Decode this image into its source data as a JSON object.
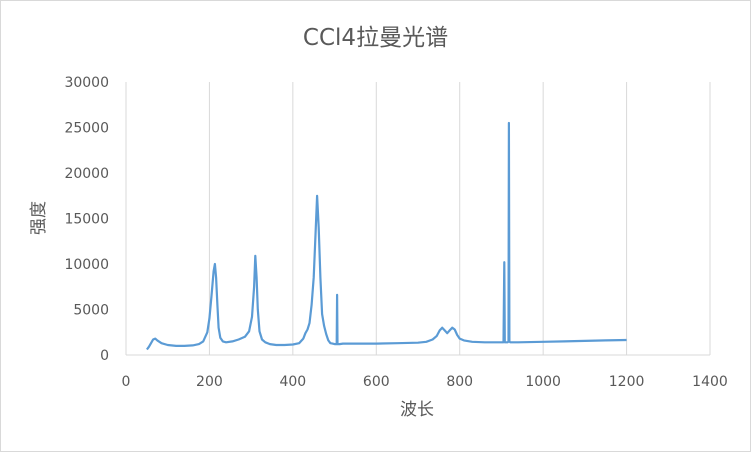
{
  "chart_data": {
    "type": "line",
    "title": "CCl4拉曼光谱",
    "xlabel": "波长",
    "ylabel": "强度",
    "xlim": [
      0,
      1400
    ],
    "ylim": [
      0,
      30000
    ],
    "x_ticks": [
      "0",
      "200",
      "400",
      "600",
      "800",
      "1000",
      "1200",
      "1400"
    ],
    "y_ticks": [
      "0",
      "5000",
      "10000",
      "15000",
      "20000",
      "25000",
      "30000"
    ],
    "grid": "vertical",
    "legend": "none",
    "colors": {
      "series": "#5b9bd5",
      "grid": "#d9d9d9",
      "text": "#595959"
    },
    "series": [
      {
        "x": [
          50,
          55,
          60,
          65,
          70,
          75,
          85,
          100,
          120,
          140,
          160,
          175,
          185,
          195,
          200,
          205,
          210,
          213,
          216,
          219,
          222,
          226,
          232,
          240,
          255,
          270,
          285,
          295,
          302,
          307,
          310,
          313,
          316,
          320,
          326,
          334,
          345,
          360,
          380,
          400,
          415,
          425,
          430,
          435,
          440,
          445,
          450,
          455,
          458,
          462,
          466,
          470,
          475,
          480,
          485,
          490,
          495,
          500,
          505,
          506,
          507,
          508,
          509,
          512,
          520,
          550,
          600,
          650,
          700,
          720,
          735,
          745,
          752,
          758,
          764,
          770,
          776,
          782,
          788,
          794,
          800,
          810,
          830,
          860,
          890,
          905,
          907,
          908,
          909,
          911,
          913,
          915,
          917,
          918,
          919,
          921,
          925,
          940,
          1000,
          1050,
          1100,
          1150,
          1200
        ],
        "y": [
          600,
          900,
          1300,
          1700,
          1800,
          1600,
          1300,
          1100,
          1000,
          1000,
          1050,
          1200,
          1500,
          2500,
          4000,
          6500,
          9200,
          10000,
          8500,
          5500,
          3000,
          1900,
          1500,
          1400,
          1500,
          1700,
          2000,
          2600,
          4200,
          7500,
          10900,
          8500,
          5000,
          2600,
          1700,
          1400,
          1200,
          1100,
          1100,
          1150,
          1300,
          1800,
          2400,
          2800,
          3500,
          5500,
          8500,
          14000,
          17500,
          14000,
          8500,
          4500,
          3200,
          2300,
          1600,
          1300,
          1250,
          1200,
          1200,
          6600,
          1200,
          1200,
          1200,
          1200,
          1250,
          1250,
          1250,
          1300,
          1350,
          1450,
          1700,
          2100,
          2700,
          3000,
          2700,
          2400,
          2700,
          3000,
          2800,
          2200,
          1800,
          1600,
          1450,
          1400,
          1400,
          1400,
          10200,
          1400,
          1400,
          1400,
          1400,
          1400,
          1500,
          25500,
          1500,
          1400,
          1400,
          1400,
          1450,
          1500,
          1550,
          1600,
          1650
        ]
      }
    ]
  }
}
